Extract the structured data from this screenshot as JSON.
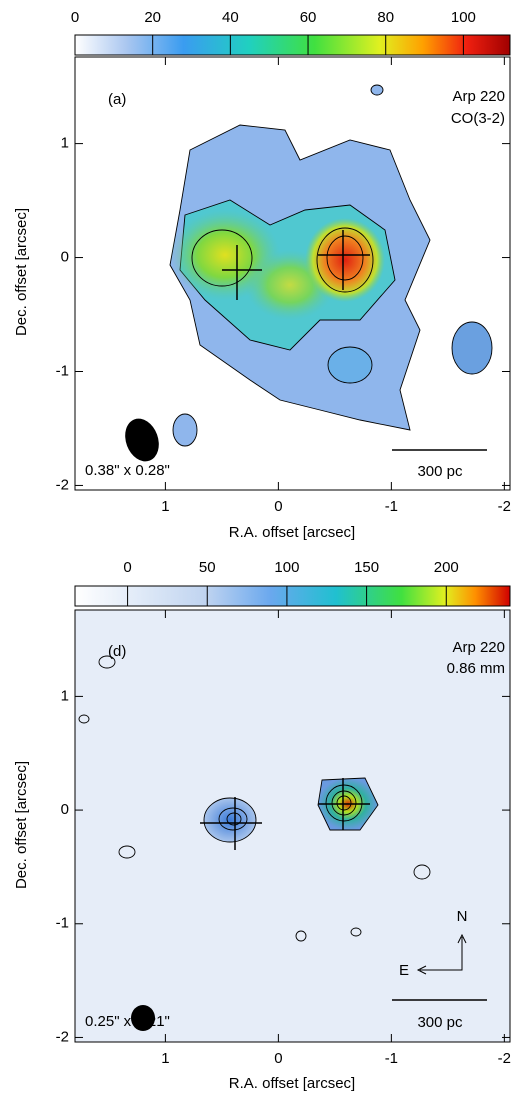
{
  "chart_data": [
    {
      "type": "map",
      "panel_label": "(a)",
      "source": "Arp 220",
      "band": "CO(3-2)",
      "beam": "0.38\" x 0.28\"",
      "scale_bar": "300 pc",
      "xlabel": "R.A. offset [arcsec]",
      "ylabel": "Dec. offset [arcsec]",
      "xlim": [
        1.8,
        -2.05
      ],
      "ylim": [
        -2.04,
        1.76
      ],
      "xticks": [
        1,
        0,
        -1,
        -2
      ],
      "yticks": [
        -2,
        -1,
        0,
        1
      ],
      "colorbar_lim": [
        0,
        112
      ],
      "colorbar_ticks": [
        0,
        20,
        40,
        60,
        80,
        100
      ]
    },
    {
      "type": "map",
      "panel_label": "(d)",
      "source": "Arp 220",
      "band": "0.86 mm",
      "beam": "0.25\" x 0.21\"",
      "scale_bar": "300 pc",
      "north": "N",
      "east": "E",
      "xlabel": "R.A. offset [arcsec]",
      "ylabel": "Dec. offset [arcsec]",
      "xlim": [
        1.8,
        -2.05
      ],
      "ylim": [
        -2.04,
        1.76
      ],
      "xticks": [
        1,
        0,
        -1,
        -2
      ],
      "yticks": [
        -2,
        -1,
        0,
        1
      ],
      "colorbar_lim": [
        -33,
        240
      ],
      "colorbar_ticks": [
        0,
        50,
        100,
        150,
        200
      ]
    }
  ]
}
